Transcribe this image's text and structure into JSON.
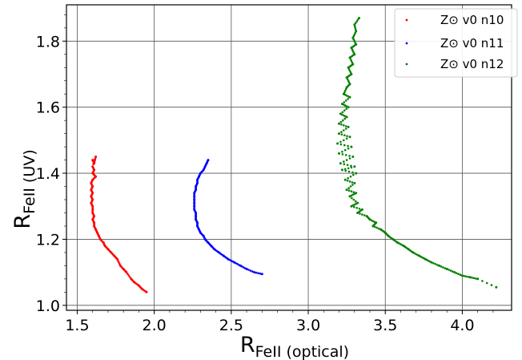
{
  "chart_data": {
    "type": "scatter",
    "xlabel": {
      "main": "R",
      "sub": "FeII (optical)"
    },
    "ylabel": {
      "main": "R",
      "sub": "FeII (UV)"
    },
    "xlim": [
      1.43,
      4.32
    ],
    "ylim": [
      0.985,
      1.91
    ],
    "xticks": [
      "1.5",
      "2.0",
      "2.5",
      "3.0",
      "3.5",
      "4.0"
    ],
    "yticks": [
      "1.0",
      "1.2",
      "1.4",
      "1.6",
      "1.8"
    ],
    "grid": true,
    "legend_position": "top-right",
    "series": [
      {
        "name": "Z⊙ v0 n10",
        "color": "#ff0000",
        "points": [
          [
            1.6,
            1.44
          ],
          [
            1.61,
            1.43
          ],
          [
            1.62,
            1.45
          ],
          [
            1.6,
            1.42
          ],
          [
            1.61,
            1.41
          ],
          [
            1.6,
            1.4
          ],
          [
            1.62,
            1.39
          ],
          [
            1.6,
            1.38
          ],
          [
            1.59,
            1.37
          ],
          [
            1.6,
            1.36
          ],
          [
            1.59,
            1.35
          ],
          [
            1.6,
            1.34
          ],
          [
            1.59,
            1.33
          ],
          [
            1.6,
            1.32
          ],
          [
            1.59,
            1.31
          ],
          [
            1.6,
            1.3
          ],
          [
            1.6,
            1.29
          ],
          [
            1.6,
            1.28
          ],
          [
            1.61,
            1.27
          ],
          [
            1.6,
            1.26
          ],
          [
            1.61,
            1.25
          ],
          [
            1.61,
            1.24
          ],
          [
            1.62,
            1.23
          ],
          [
            1.63,
            1.22
          ],
          [
            1.64,
            1.21
          ],
          [
            1.65,
            1.2
          ],
          [
            1.67,
            1.19
          ],
          [
            1.68,
            1.18
          ],
          [
            1.7,
            1.17
          ],
          [
            1.72,
            1.16
          ],
          [
            1.74,
            1.15
          ],
          [
            1.76,
            1.14
          ],
          [
            1.78,
            1.12
          ],
          [
            1.8,
            1.11
          ],
          [
            1.82,
            1.1
          ],
          [
            1.85,
            1.08
          ],
          [
            1.87,
            1.07
          ],
          [
            1.9,
            1.06
          ],
          [
            1.92,
            1.05
          ],
          [
            1.95,
            1.04
          ]
        ]
      },
      {
        "name": "Z⊙ v0 n11",
        "color": "#0000ff",
        "points": [
          [
            2.35,
            1.44
          ],
          [
            2.34,
            1.43
          ],
          [
            2.33,
            1.42
          ],
          [
            2.32,
            1.41
          ],
          [
            2.3,
            1.4
          ],
          [
            2.29,
            1.39
          ],
          [
            2.28,
            1.38
          ],
          [
            2.28,
            1.37
          ],
          [
            2.27,
            1.36
          ],
          [
            2.27,
            1.35
          ],
          [
            2.26,
            1.34
          ],
          [
            2.26,
            1.33
          ],
          [
            2.26,
            1.32
          ],
          [
            2.26,
            1.31
          ],
          [
            2.26,
            1.3
          ],
          [
            2.26,
            1.29
          ],
          [
            2.27,
            1.28
          ],
          [
            2.27,
            1.27
          ],
          [
            2.27,
            1.26
          ],
          [
            2.28,
            1.25
          ],
          [
            2.28,
            1.24
          ],
          [
            2.29,
            1.23
          ],
          [
            2.3,
            1.22
          ],
          [
            2.32,
            1.21
          ],
          [
            2.33,
            1.2
          ],
          [
            2.35,
            1.19
          ],
          [
            2.37,
            1.18
          ],
          [
            2.39,
            1.17
          ],
          [
            2.42,
            1.16
          ],
          [
            2.45,
            1.15
          ],
          [
            2.48,
            1.14
          ],
          [
            2.52,
            1.13
          ],
          [
            2.56,
            1.12
          ],
          [
            2.6,
            1.11
          ],
          [
            2.65,
            1.1
          ],
          [
            2.7,
            1.095
          ]
        ]
      },
      {
        "name": "Z⊙ v0 n12",
        "color": "#008000",
        "points": [
          [
            3.33,
            1.87
          ],
          [
            3.3,
            1.85
          ],
          [
            3.31,
            1.83
          ],
          [
            3.29,
            1.81
          ],
          [
            3.31,
            1.79
          ],
          [
            3.28,
            1.78
          ],
          [
            3.3,
            1.76
          ],
          [
            3.27,
            1.75
          ],
          [
            3.29,
            1.73
          ],
          [
            3.26,
            1.72
          ],
          [
            3.28,
            1.7
          ],
          [
            3.25,
            1.69
          ],
          [
            3.27,
            1.67
          ],
          [
            3.25,
            1.66
          ],
          [
            3.23,
            1.64
          ],
          [
            3.27,
            1.63
          ],
          [
            3.22,
            1.61
          ],
          [
            3.26,
            1.6
          ],
          [
            3.21,
            1.58
          ],
          [
            3.25,
            1.57
          ],
          [
            3.2,
            1.55
          ],
          [
            3.26,
            1.54
          ],
          [
            3.2,
            1.52
          ],
          [
            3.27,
            1.51
          ],
          [
            3.19,
            1.49
          ],
          [
            3.28,
            1.48
          ],
          [
            3.2,
            1.46
          ],
          [
            3.29,
            1.45
          ],
          [
            3.21,
            1.43
          ],
          [
            3.3,
            1.42
          ],
          [
            3.22,
            1.41
          ],
          [
            3.31,
            1.4
          ],
          [
            3.24,
            1.38
          ],
          [
            3.3,
            1.37
          ],
          [
            3.25,
            1.35
          ],
          [
            3.31,
            1.34
          ],
          [
            3.27,
            1.33
          ],
          [
            3.32,
            1.31
          ],
          [
            3.28,
            1.3
          ],
          [
            3.35,
            1.29
          ],
          [
            3.32,
            1.28
          ],
          [
            3.38,
            1.27
          ],
          [
            3.4,
            1.26
          ],
          [
            3.44,
            1.25
          ],
          [
            3.42,
            1.24
          ],
          [
            3.47,
            1.23
          ],
          [
            3.5,
            1.22
          ],
          [
            3.52,
            1.21
          ],
          [
            3.55,
            1.2
          ],
          [
            3.58,
            1.19
          ],
          [
            3.62,
            1.18
          ],
          [
            3.65,
            1.17
          ],
          [
            3.68,
            1.16
          ],
          [
            3.72,
            1.15
          ],
          [
            3.76,
            1.14
          ],
          [
            3.8,
            1.13
          ],
          [
            3.85,
            1.12
          ],
          [
            3.9,
            1.11
          ],
          [
            3.95,
            1.1
          ],
          [
            4.0,
            1.09
          ],
          [
            4.05,
            1.085
          ],
          [
            4.1,
            1.08
          ],
          [
            4.22,
            1.055
          ]
        ]
      }
    ]
  }
}
